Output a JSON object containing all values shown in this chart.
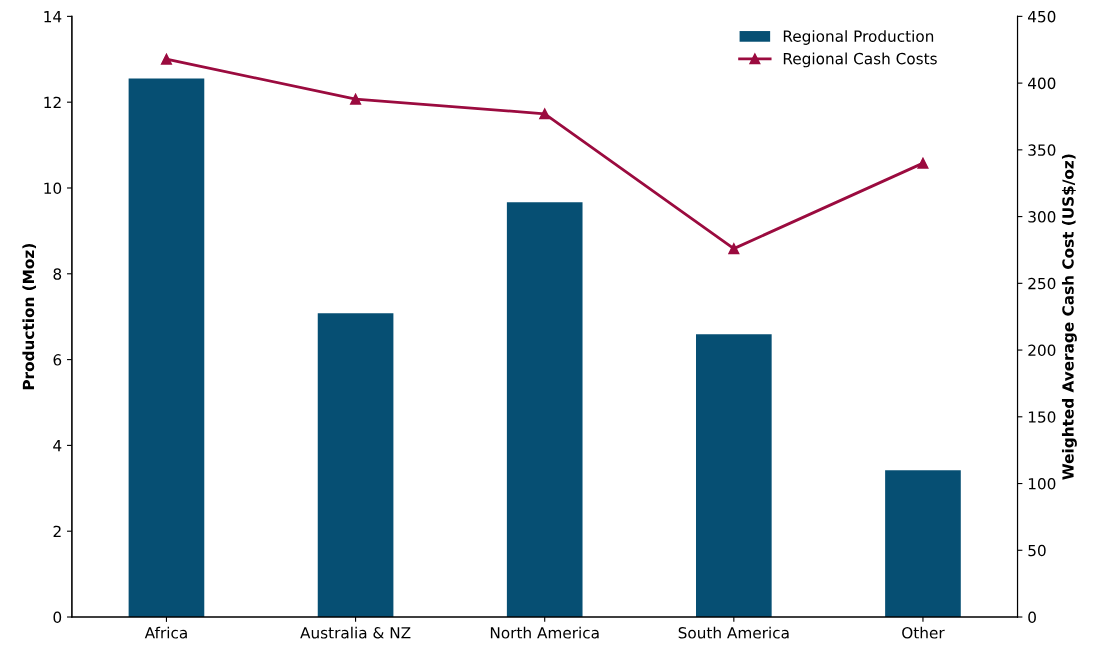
{
  "chart_data": {
    "type": "bar",
    "categories": [
      "Africa",
      "Australia & NZ",
      "North America",
      "South America",
      "Other"
    ],
    "ylabel": "Production (Moz)",
    "y2label": "Weighted Average Cash Cost (US$/oz)",
    "series": [
      {
        "name": "Regional Production",
        "color": "#064f73",
        "values": [
          12.55,
          7.08,
          9.67,
          6.59,
          3.42
        ]
      },
      {
        "name": "Regional Cash Costs",
        "type": "line",
        "axis": "y2",
        "color": "#9b0b3f",
        "marker": "triangle",
        "values": [
          418,
          388,
          377,
          276,
          340
        ]
      }
    ],
    "ylim": [
      0,
      14
    ],
    "yticks": [
      0,
      2,
      4,
      6,
      8,
      10,
      12,
      14
    ],
    "y2lim": [
      0,
      450
    ],
    "y2ticks": [
      0,
      50,
      100,
      150,
      200,
      250,
      300,
      350,
      400,
      450
    ],
    "grid": false,
    "legend": "top right"
  }
}
